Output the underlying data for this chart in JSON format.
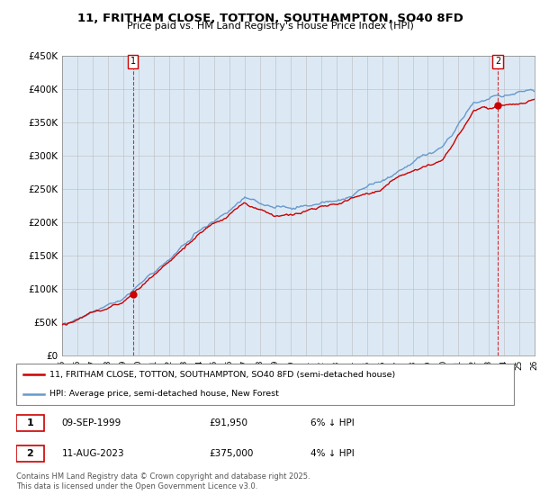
{
  "title": "11, FRITHAM CLOSE, TOTTON, SOUTHAMPTON, SO40 8FD",
  "subtitle": "Price paid vs. HM Land Registry's House Price Index (HPI)",
  "legend_line1": "11, FRITHAM CLOSE, TOTTON, SOUTHAMPTON, SO40 8FD (semi-detached house)",
  "legend_line2": "HPI: Average price, semi-detached house, New Forest",
  "transaction1_date": "09-SEP-1999",
  "transaction1_price": "£91,950",
  "transaction1_hpi": "6% ↓ HPI",
  "transaction2_date": "11-AUG-2023",
  "transaction2_price": "£375,000",
  "transaction2_hpi": "4% ↓ HPI",
  "footer": "Contains HM Land Registry data © Crown copyright and database right 2025.\nThis data is licensed under the Open Government Licence v3.0.",
  "price_color": "#cc0000",
  "hpi_color": "#6699cc",
  "chart_bg_color": "#dce9f5",
  "background_color": "#ffffff",
  "ylim_min": 0,
  "ylim_max": 450000,
  "year_start": 1995,
  "year_end": 2026
}
